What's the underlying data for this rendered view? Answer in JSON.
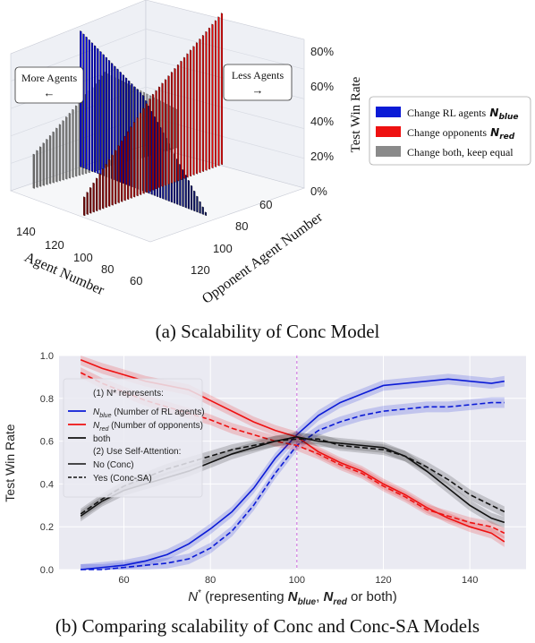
{
  "captions": {
    "a": "(a) Scalability of Conc Model",
    "b": "(b) Comparing scalability of Conc and Conc-SA Models"
  },
  "colors": {
    "blue": "#0b1bd6",
    "red": "#ee1111",
    "gray": "#8a8a8a",
    "black": "#111111",
    "panel_bg": "#eaeaf2",
    "guide": "#cc66dd"
  },
  "chart_data": [
    {
      "type": "bar",
      "subtype": "3d-bar",
      "xlabel": "Agent Number",
      "ylabel": "Opponent Agent Number",
      "zlabel": "Test Win Rate",
      "x_ticks": [
        "140",
        "120",
        "100",
        "80",
        "60"
      ],
      "y_ticks": [
        "120",
        "100",
        "80",
        "60"
      ],
      "z_ticks": [
        "0%",
        "20%",
        "40%",
        "60%",
        "80%"
      ],
      "zlim": [
        0,
        0.9
      ],
      "annotations": [
        {
          "text": "More Agents",
          "arrow": "←"
        },
        {
          "text": "Less Agents",
          "arrow": "→"
        }
      ],
      "legend": {
        "placement": "right",
        "entries": [
          {
            "label": "Change RL agents",
            "math": "N",
            "sub": "blue",
            "color": "#0b1bd6"
          },
          {
            "label": "Change opponents",
            "math": "N",
            "sub": "red",
            "color": "#ee1111"
          },
          {
            "label": "Change both, keep equal",
            "color": "#8a8a8a"
          }
        ]
      },
      "series": [
        {
          "name": "Change RL agents N_blue",
          "x": [
            50,
            100,
            150
          ],
          "values": [
            0.02,
            0.62,
            0.88
          ]
        },
        {
          "name": "Change opponents N_red",
          "x": [
            50,
            100,
            150
          ],
          "values": [
            0.98,
            0.62,
            0.12
          ]
        },
        {
          "name": "Change both, keep equal",
          "x": [
            50,
            100,
            150
          ],
          "values": [
            0.25,
            0.62,
            0.22
          ]
        }
      ]
    },
    {
      "type": "line",
      "xlabel_parts": {
        "pre": "N",
        "sup": "*",
        "mid": " (representing ",
        "a": "N",
        "a_sub": "blue",
        "sep": ", ",
        "b": "N",
        "b_sub": "red",
        "post": " or both)"
      },
      "ylabel": "Test Win Rate",
      "xlim": [
        45,
        153
      ],
      "ylim": [
        0.0,
        1.0
      ],
      "x_ticks": [
        60,
        80,
        100,
        120,
        140
      ],
      "y_ticks": [
        "0.0",
        "0.2",
        "0.4",
        "0.6",
        "0.8",
        "1.0"
      ],
      "vline_x": 100,
      "grid": true,
      "legend": {
        "placement": "left",
        "header1": "(1) N* represents:",
        "entries": [
          {
            "math": "N",
            "sub": "blue",
            "label": " (Number of RL agents)",
            "color": "#0b1bd6"
          },
          {
            "math": "N",
            "sub": "red",
            "label": " (Number of opponents)",
            "color": "#ee1111"
          },
          {
            "label": "both",
            "color": "#111111"
          }
        ],
        "header2": "(2) Use Self-Attention:",
        "styles": [
          {
            "label": "No  (Conc)",
            "dash": false
          },
          {
            "label": "Yes (Conc-SA)",
            "dash": true
          }
        ]
      },
      "series": [
        {
          "name": "N_blue (Number of RL agents), No (Conc)",
          "color": "blue",
          "dash": false,
          "x": [
            50,
            55,
            60,
            65,
            70,
            75,
            80,
            85,
            90,
            95,
            100,
            105,
            110,
            115,
            120,
            125,
            130,
            135,
            140,
            145,
            148
          ],
          "values": [
            0.0,
            0.01,
            0.02,
            0.04,
            0.07,
            0.12,
            0.19,
            0.27,
            0.38,
            0.52,
            0.63,
            0.72,
            0.78,
            0.82,
            0.86,
            0.87,
            0.88,
            0.89,
            0.88,
            0.87,
            0.88
          ]
        },
        {
          "name": "N_blue (Number of RL agents), Yes (Conc-SA)",
          "color": "blue",
          "dash": true,
          "x": [
            50,
            55,
            60,
            65,
            70,
            75,
            80,
            85,
            90,
            95,
            100,
            105,
            110,
            115,
            120,
            125,
            130,
            135,
            140,
            145,
            148
          ],
          "values": [
            0.0,
            0.0,
            0.01,
            0.02,
            0.03,
            0.05,
            0.1,
            0.18,
            0.3,
            0.45,
            0.58,
            0.65,
            0.69,
            0.72,
            0.74,
            0.75,
            0.76,
            0.76,
            0.77,
            0.78,
            0.78
          ]
        },
        {
          "name": "N_red (Number of opponents), No (Conc)",
          "color": "red",
          "dash": false,
          "x": [
            50,
            55,
            60,
            65,
            70,
            75,
            80,
            85,
            90,
            95,
            100,
            105,
            110,
            115,
            120,
            125,
            130,
            135,
            140,
            145,
            148
          ],
          "values": [
            0.98,
            0.94,
            0.91,
            0.88,
            0.86,
            0.84,
            0.79,
            0.74,
            0.69,
            0.65,
            0.62,
            0.55,
            0.5,
            0.46,
            0.4,
            0.35,
            0.29,
            0.24,
            0.2,
            0.17,
            0.13
          ]
        },
        {
          "name": "N_red (Number of opponents), Yes (Conc-SA)",
          "color": "red",
          "dash": true,
          "x": [
            50,
            55,
            60,
            65,
            70,
            75,
            80,
            85,
            90,
            95,
            100,
            105,
            110,
            115,
            120,
            125,
            130,
            135,
            140,
            145,
            148
          ],
          "values": [
            0.92,
            0.87,
            0.83,
            0.79,
            0.76,
            0.73,
            0.7,
            0.66,
            0.63,
            0.6,
            0.58,
            0.54,
            0.49,
            0.45,
            0.39,
            0.34,
            0.28,
            0.25,
            0.22,
            0.2,
            0.17
          ]
        },
        {
          "name": "both, No (Conc)",
          "color": "black",
          "dash": false,
          "x": [
            50,
            55,
            60,
            65,
            70,
            75,
            80,
            85,
            90,
            95,
            100,
            105,
            110,
            115,
            120,
            125,
            130,
            135,
            140,
            145,
            148
          ],
          "values": [
            0.25,
            0.32,
            0.37,
            0.4,
            0.43,
            0.46,
            0.5,
            0.54,
            0.57,
            0.6,
            0.62,
            0.6,
            0.59,
            0.58,
            0.57,
            0.53,
            0.46,
            0.38,
            0.3,
            0.24,
            0.22
          ]
        },
        {
          "name": "both, Yes (Conc-SA)",
          "color": "black",
          "dash": true,
          "x": [
            50,
            55,
            60,
            65,
            70,
            75,
            80,
            85,
            90,
            95,
            100,
            105,
            110,
            115,
            120,
            125,
            130,
            135,
            140,
            145,
            148
          ],
          "values": [
            0.26,
            0.33,
            0.39,
            0.43,
            0.47,
            0.5,
            0.53,
            0.56,
            0.58,
            0.6,
            0.61,
            0.61,
            0.58,
            0.57,
            0.56,
            0.53,
            0.48,
            0.42,
            0.35,
            0.3,
            0.27
          ]
        }
      ]
    }
  ]
}
